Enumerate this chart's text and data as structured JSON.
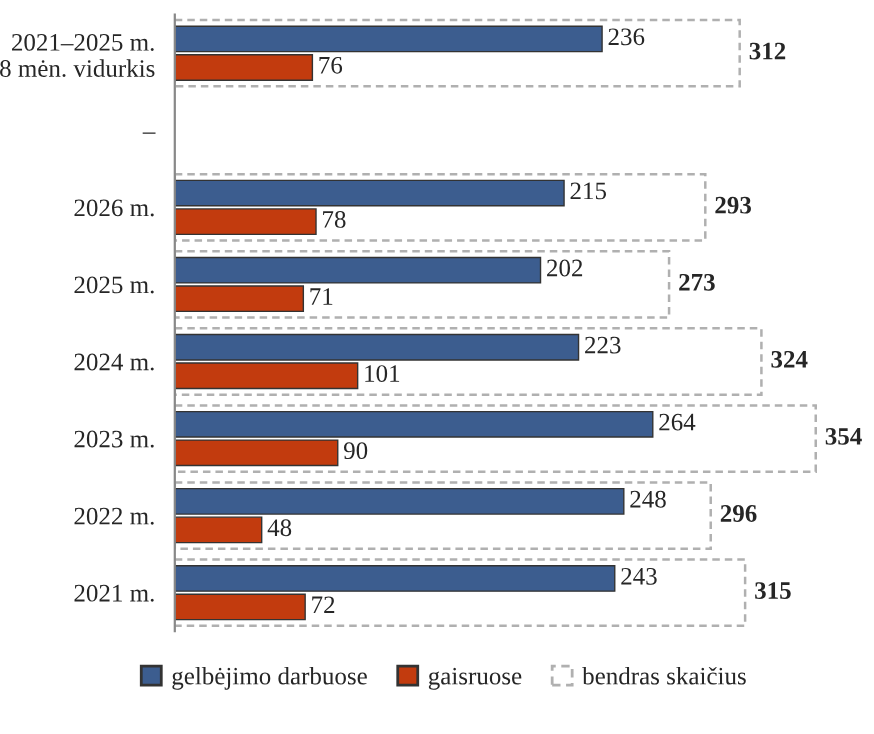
{
  "chart_data": {
    "type": "bar",
    "orientation": "horizontal",
    "categories": [
      "2021–2025 m.\n8 mėn. vidurkis",
      "–",
      "2026 m.",
      "2025 m.",
      "2024 m.",
      "2023 m.",
      "2022 m.",
      "2021 m."
    ],
    "series": [
      {
        "name": "gelbėjimo darbuose",
        "color": "#3c5d8f",
        "values": [
          236,
          null,
          215,
          202,
          223,
          264,
          248,
          243
        ]
      },
      {
        "name": "gaisruose",
        "color": "#c23b0e",
        "values": [
          76,
          null,
          78,
          71,
          101,
          90,
          48,
          72
        ]
      },
      {
        "name": "bendras skaičius",
        "color": "#ffffff",
        "line_style": "dashed",
        "values": [
          312,
          null,
          293,
          273,
          324,
          354,
          296,
          315
        ]
      }
    ],
    "data_labels": true,
    "legend": "bottom",
    "tick_labels": "y",
    "grid": false
  }
}
